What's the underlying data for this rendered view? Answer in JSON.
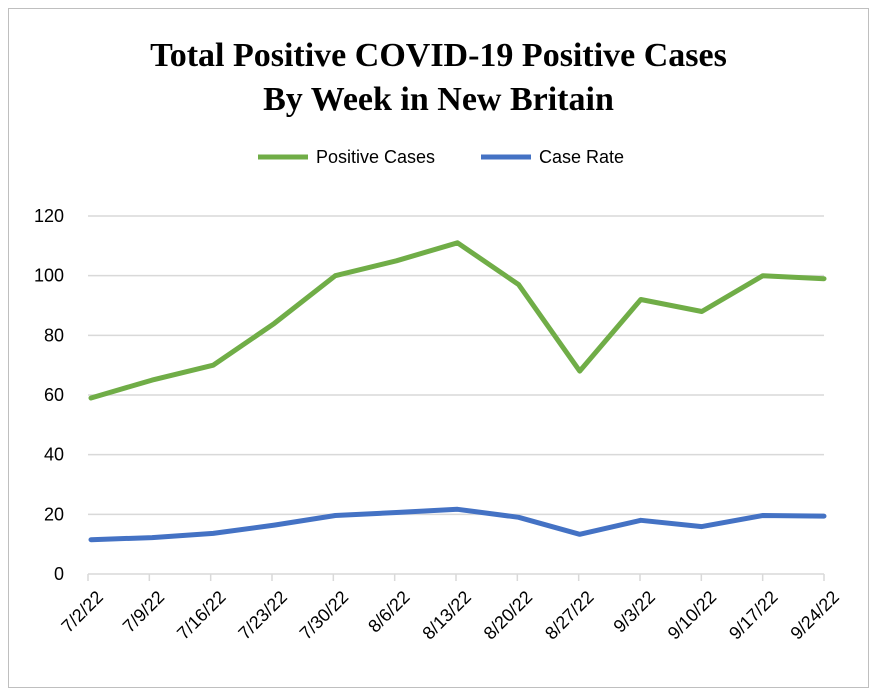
{
  "chart_data": {
    "type": "line",
    "title": [
      "Total Positive COVID-19 Positive Cases",
      "By Week in New Britain"
    ],
    "categories": [
      "7/2/22",
      "7/9/22",
      "7/16/22",
      "7/23/22",
      "7/30/22",
      "8/6/22",
      "8/13/22",
      "8/20/22",
      "8/27/22",
      "9/3/22",
      "9/10/22",
      "9/17/22",
      "9/24/22"
    ],
    "series": [
      {
        "name": "Positive Cases",
        "color": "#70ad47",
        "values": [
          59,
          65,
          70,
          84,
          100,
          105,
          111,
          97,
          68,
          92,
          88,
          100,
          99
        ]
      },
      {
        "name": "Case Rate",
        "color": "#4472c4",
        "values": [
          11.5,
          12.2,
          13.6,
          16.4,
          19.6,
          20.6,
          21.7,
          19.0,
          13.3,
          18.0,
          15.9,
          19.6,
          19.4
        ]
      }
    ],
    "ylim": [
      0,
      120
    ],
    "yticks": [
      0,
      20,
      40,
      60,
      80,
      100,
      120
    ],
    "grid": true,
    "legend_position": "top"
  }
}
